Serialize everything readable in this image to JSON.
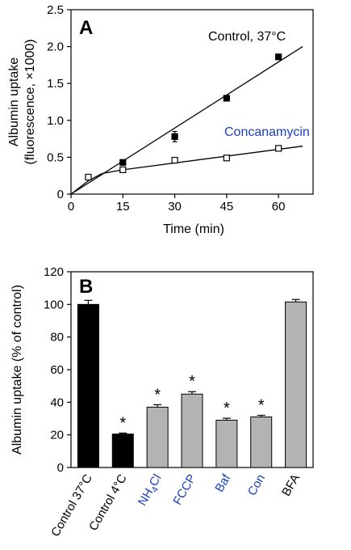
{
  "colors": {
    "blue_label": "#1a3fbf",
    "bar_black": "#000000",
    "bar_gray": "#b3b3b3"
  },
  "chart_data": [
    {
      "panel": "A",
      "type": "line",
      "xlabel": "Time (min)",
      "ylabel_lines": [
        "Albumin uptake",
        "(fluorescence, ×1000)"
      ],
      "xlim": [
        0,
        70
      ],
      "ylim": [
        0,
        2.5
      ],
      "xticks": [
        0,
        15,
        30,
        45,
        60
      ],
      "yticks": [
        0,
        0.5,
        1.0,
        1.5,
        2.0,
        2.5
      ],
      "ytick_labels": [
        "0",
        "0.5",
        "1.0",
        "1.5",
        "2.0",
        "2.5"
      ],
      "grid": false,
      "series": [
        {
          "name": "Control, 37°C",
          "marker": "filled-square",
          "label_color": "#000000",
          "x": [
            15,
            30,
            45,
            60
          ],
          "y": [
            0.43,
            0.78,
            1.3,
            1.86
          ],
          "err": [
            0.02,
            0.07,
            0.03,
            0.03
          ],
          "fit": [
            [
              0,
              0
            ],
            [
              67,
              2.0
            ]
          ]
        },
        {
          "name": "Concanamycin",
          "marker": "open-square",
          "label_color": "#1a3fbf",
          "x": [
            5,
            15,
            30,
            45,
            60
          ],
          "y": [
            0.23,
            0.33,
            0.46,
            0.49,
            0.62
          ],
          "err": [
            0.03,
            0.03,
            0.03,
            0.03,
            0.03
          ],
          "fit": [
            [
              0,
              0
            ],
            [
              5,
              0.18
            ],
            [
              9,
              0.28
            ],
            [
              15,
              0.33
            ],
            [
              67,
              0.65
            ]
          ]
        }
      ]
    },
    {
      "panel": "B",
      "type": "bar",
      "ylabel": "Albumin uptake (% of control)",
      "ylim": [
        0,
        120
      ],
      "yticks": [
        0,
        20,
        40,
        60,
        80,
        100,
        120
      ],
      "grid": false,
      "categories": [
        "Control 37°C",
        "Control 4°C",
        "NH4Cl",
        "FCCP",
        "Baf",
        "Con",
        "BFA"
      ],
      "category_colors": [
        "#000000",
        "#000000",
        "#1a3fbf",
        "#1a3fbf",
        "#1a3fbf",
        "#1a3fbf",
        "#000000"
      ],
      "bar_fill": [
        "black",
        "black",
        "gray",
        "gray",
        "gray",
        "gray",
        "gray"
      ],
      "values": [
        100,
        20.5,
        37,
        45,
        29,
        31,
        101.5
      ],
      "err": [
        2.5,
        0.6,
        1.5,
        1.5,
        1.2,
        1.0,
        1.5
      ],
      "significance": [
        "",
        "*",
        "*",
        "*",
        "*",
        "*",
        ""
      ]
    }
  ]
}
